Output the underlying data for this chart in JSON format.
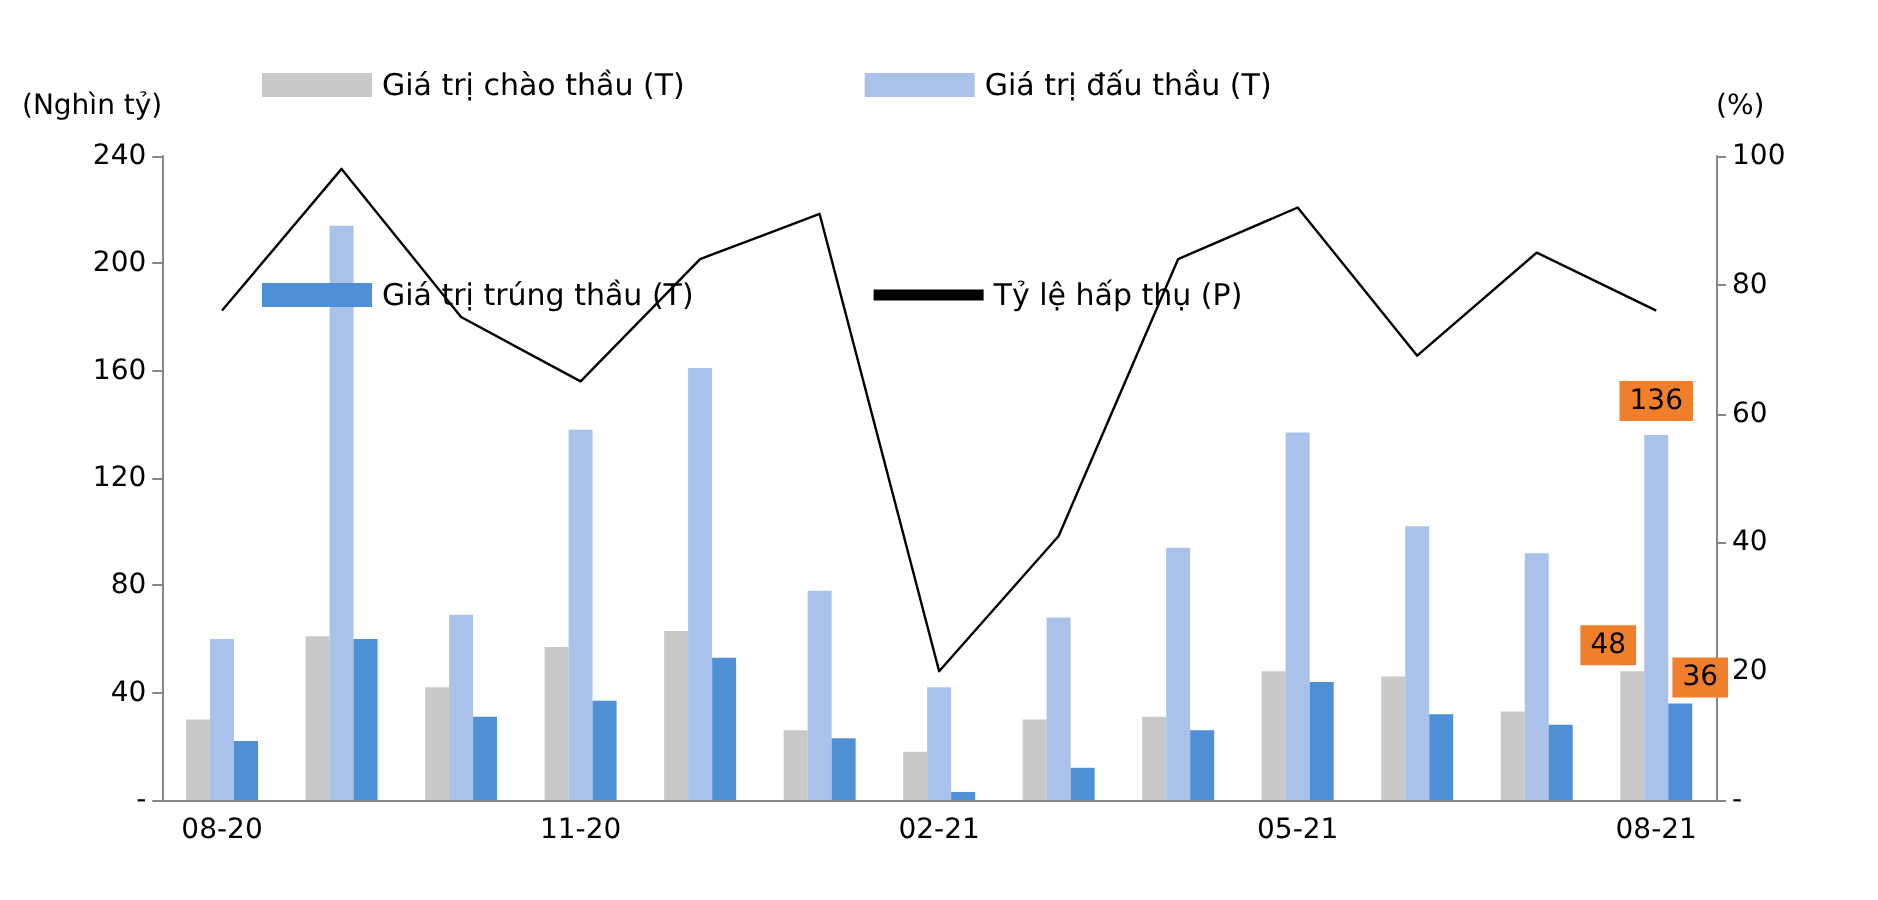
{
  "chart_data": {
    "type": "bar",
    "ylabel": "(Nghìn tỷ)",
    "y2label": "(%)",
    "categories": [
      "08-20",
      null,
      null,
      "11-20",
      null,
      null,
      "02-21",
      null,
      null,
      "05-21",
      null,
      null,
      "08-21"
    ],
    "series": [
      {
        "name": "Giá trị chào thầu (T)",
        "color": "#c9c9c9",
        "values": [
          30,
          61,
          42,
          57,
          63,
          26,
          18,
          30,
          31,
          48,
          46,
          33,
          48
        ],
        "value_labels": [
          null,
          null,
          null,
          null,
          null,
          null,
          null,
          null,
          null,
          null,
          null,
          null,
          "48"
        ]
      },
      {
        "name": "Giá trị đấu thầu (T)",
        "color": "#aac1e9",
        "values": [
          60,
          214,
          69,
          138,
          161,
          78,
          42,
          68,
          94,
          137,
          102,
          92,
          136
        ],
        "value_labels": [
          null,
          null,
          null,
          null,
          null,
          null,
          null,
          null,
          null,
          null,
          null,
          null,
          "136"
        ]
      },
      {
        "name": "Giá trị trúng thầu (T)",
        "color": "#4e8fd6",
        "values": [
          22,
          60,
          31,
          37,
          53,
          23,
          3,
          12,
          26,
          44,
          32,
          28,
          36
        ],
        "value_labels": [
          null,
          null,
          null,
          null,
          null,
          null,
          null,
          null,
          null,
          null,
          null,
          null,
          "36"
        ]
      },
      {
        "name": "Tỷ lệ hấp thụ (P)",
        "type": "line",
        "axis": "y2",
        "color": "#000000",
        "values": [
          76,
          98,
          75,
          65,
          84,
          91,
          20,
          41,
          84,
          92,
          69,
          85,
          76
        ]
      }
    ],
    "ylim": [
      0,
      240
    ],
    "yticks": [
      {
        "value": 0,
        "label": "-"
      },
      40,
      80,
      120,
      160,
      200,
      240
    ],
    "y2lim": [
      0,
      100
    ],
    "y2ticks": [
      {
        "value": 0,
        "label": "-"
      },
      20,
      40,
      60,
      80,
      100
    ],
    "legend": "top",
    "grid": false,
    "marker": "none",
    "line_style": "solid"
  }
}
